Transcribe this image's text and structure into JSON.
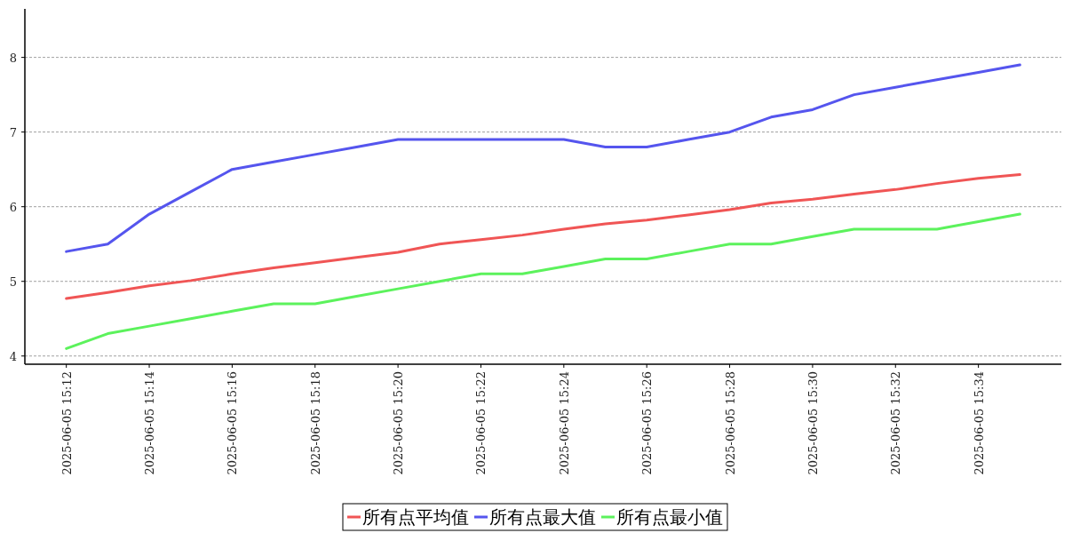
{
  "chart_data": {
    "type": "line",
    "x": [
      "2025-06-05T15:12",
      "2025-06-05T15:13",
      "2025-06-05T15:14",
      "2025-06-05T15:15",
      "2025-06-05T15:16",
      "2025-06-05T15:17",
      "2025-06-05T15:18",
      "2025-06-05T15:19",
      "2025-06-05T15:20",
      "2025-06-05T15:21",
      "2025-06-05T15:22",
      "2025-06-05T15:23",
      "2025-06-05T15:24",
      "2025-06-05T15:25",
      "2025-06-05T15:26",
      "2025-06-05T15:27",
      "2025-06-05T15:28",
      "2025-06-05T15:29",
      "2025-06-05T15:30",
      "2025-06-05T15:31",
      "2025-06-05T15:32",
      "2025-06-05T15:33",
      "2025-06-05T15:34",
      "2025-06-05T15:35"
    ],
    "series": [
      {
        "name": "所有点平均值",
        "color": "#f05555",
        "values": [
          4.77,
          4.85,
          4.94,
          5.01,
          5.1,
          5.18,
          5.25,
          5.32,
          5.39,
          5.5,
          5.56,
          5.62,
          5.7,
          5.77,
          5.82,
          5.89,
          5.96,
          6.05,
          6.1,
          6.17,
          6.23,
          6.31,
          6.38,
          6.43
        ]
      },
      {
        "name": "所有点最大值",
        "color": "#5555ee",
        "values": [
          5.4,
          5.5,
          5.9,
          6.2,
          6.5,
          6.6,
          6.7,
          6.8,
          6.9,
          6.9,
          6.9,
          6.9,
          6.9,
          6.8,
          6.8,
          6.9,
          7.0,
          7.2,
          7.3,
          7.5,
          7.6,
          7.7,
          7.8,
          7.9
        ]
      },
      {
        "name": "所有点最小值",
        "color": "#5cf25c",
        "values": [
          4.1,
          4.3,
          4.4,
          4.5,
          4.6,
          4.7,
          4.7,
          4.8,
          4.9,
          5.0,
          5.1,
          5.1,
          5.2,
          5.3,
          5.3,
          5.4,
          5.5,
          5.5,
          5.6,
          5.7,
          5.7,
          5.7,
          5.8,
          5.9
        ]
      }
    ],
    "xlim": [
      "2025-06-05T15:11",
      "2025-06-05T15:36"
    ],
    "xticks": [
      {
        "value": "2025-06-05T15:12",
        "label": "2025-06-05 15:12"
      },
      {
        "value": "2025-06-05T15:14",
        "label": "2025-06-05 15:14"
      },
      {
        "value": "2025-06-05T15:16",
        "label": "2025-06-05 15:16"
      },
      {
        "value": "2025-06-05T15:18",
        "label": "2025-06-05 15:18"
      },
      {
        "value": "2025-06-05T15:20",
        "label": "2025-06-05 15:20"
      },
      {
        "value": "2025-06-05T15:22",
        "label": "2025-06-05 15:22"
      },
      {
        "value": "2025-06-05T15:24",
        "label": "2025-06-05 15:24"
      },
      {
        "value": "2025-06-05T15:26",
        "label": "2025-06-05 15:26"
      },
      {
        "value": "2025-06-05T15:28",
        "label": "2025-06-05 15:28"
      },
      {
        "value": "2025-06-05T15:30",
        "label": "2025-06-05 15:30"
      },
      {
        "value": "2025-06-05T15:32",
        "label": "2025-06-05 15:32"
      },
      {
        "value": "2025-06-05T15:34",
        "label": "2025-06-05 15:34"
      }
    ],
    "ylim": [
      3.89,
      8.65
    ],
    "yticks": [
      4,
      5,
      6,
      7,
      8
    ],
    "grid": "y",
    "legend": "bottom",
    "marker": "none",
    "line_style": "solid"
  }
}
